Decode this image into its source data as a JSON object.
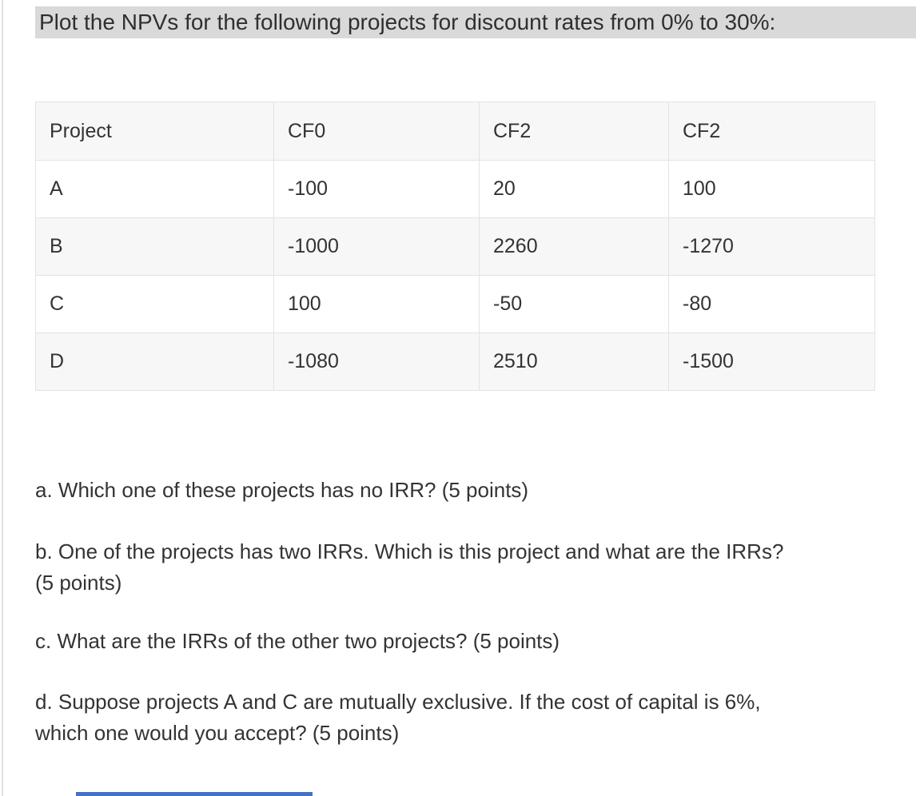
{
  "prompt": {
    "text": "Plot the NPVs for the following projects for discount rates from 0% to 30%:",
    "highlight_color": "#d9d9d9"
  },
  "table": {
    "columns": [
      "Project",
      "CF0",
      "CF2",
      "CF2"
    ],
    "rows": [
      [
        "A",
        "-100",
        "20",
        "100"
      ],
      [
        "B",
        "-1000",
        "2260",
        "-1270"
      ],
      [
        "C",
        "100",
        "-50",
        "-80"
      ],
      [
        "D",
        "-1080",
        "2510",
        "-1500"
      ]
    ],
    "stripe_color": "#f7f7f7",
    "border_color": "#e3e3e3"
  },
  "questions": [
    {
      "label": "a",
      "lines": [
        "a. Which one of these projects has no IRR? (5 points)"
      ]
    },
    {
      "label": "b",
      "lines": [
        "b. One of the projects has two IRRs. Which is this project and what are the IRRs?",
        "(5 points)"
      ]
    },
    {
      "label": "c",
      "lines": [
        "c. What are the IRRs of the other two projects? (5 points)"
      ]
    },
    {
      "label": "d",
      "lines": [
        "d. Suppose projects A and C are mutually exclusive. If the cost of capital is 6%,",
        "which one would you accept? (5 points)"
      ]
    }
  ],
  "partial_bottom_element": {
    "color": "#4472c4"
  },
  "colors": {
    "text": "#333333",
    "highlight": "#d9d9d9"
  }
}
